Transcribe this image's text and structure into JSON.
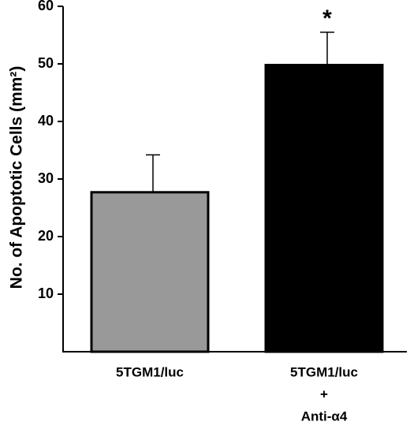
{
  "chart_data": {
    "type": "bar",
    "title": "",
    "xlabel": "",
    "ylabel": "No. of Apoptotic Cells (mm²)",
    "ylim": [
      0,
      60
    ],
    "yticks": [
      10,
      20,
      30,
      40,
      50,
      60
    ],
    "categories": [
      [
        "5TGM1/luc"
      ],
      [
        "5TGM1/luc",
        "+",
        "Anti-α4"
      ]
    ],
    "values": [
      27.7,
      49.8
    ],
    "errors": [
      6.5,
      5.7
    ],
    "colors": [
      "#999999",
      "#000000"
    ],
    "annotations": [
      "",
      "*"
    ],
    "grid": false
  }
}
